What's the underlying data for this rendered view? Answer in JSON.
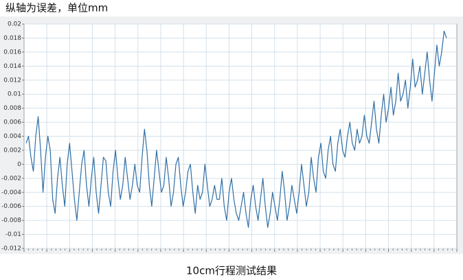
{
  "chart_data": {
    "type": "line",
    "title": "纵轴为误差，单位mm",
    "caption": "10cm行程测试结果",
    "series": [
      {
        "name": "误差",
        "color": "#2f6ea6",
        "values": [
          0.003,
          0.004,
          0.001,
          -0.001,
          0.004,
          0.0068,
          0.002,
          -0.004,
          0.001,
          0.004,
          0.002,
          -0.005,
          -0.007,
          -0.002,
          0.001,
          -0.003,
          -0.006,
          0,
          0.003,
          -0.001,
          -0.005,
          -0.008,
          -0.004,
          0,
          0.002,
          -0.003,
          -0.006,
          -0.002,
          0.001,
          -0.004,
          -0.007,
          -0.003,
          0.001,
          0.0005,
          -0.004,
          -0.006,
          -0.001,
          0.002,
          -0.002,
          -0.005,
          -0.003,
          0.001,
          -0.002,
          -0.005,
          -0.003,
          0,
          -0.003,
          -0.004,
          0.001,
          0.005,
          0.002,
          -0.003,
          -0.006,
          -0.002,
          0.002,
          -0.001,
          -0.004,
          -0.003,
          0.001,
          -0.002,
          -0.006,
          -0.004,
          0,
          0.001,
          -0.003,
          -0.006,
          -0.004,
          -0.001,
          0,
          -0.004,
          -0.007,
          -0.003,
          -0.005,
          -0.004,
          0,
          -0.003,
          -0.006,
          -0.005,
          -0.003,
          -0.005,
          -0.005,
          -0.002,
          -0.006,
          -0.008,
          -0.004,
          -0.002,
          -0.005,
          -0.007,
          -0.008,
          -0.006,
          -0.004,
          -0.007,
          -0.009,
          -0.005,
          -0.003,
          -0.006,
          -0.008,
          -0.005,
          -0.002,
          -0.006,
          -0.009,
          -0.007,
          -0.004,
          -0.006,
          -0.008,
          -0.005,
          -0.001,
          -0.004,
          -0.008,
          -0.006,
          -0.003,
          -0.005,
          -0.007,
          -0.004,
          0,
          -0.003,
          -0.006,
          -0.004,
          0.001,
          -0.002,
          -0.004,
          0.001,
          0.003,
          -0.001,
          -0.002,
          0.002,
          0.004,
          0,
          -0.001,
          0.003,
          0.005,
          0.002,
          0.001,
          0.004,
          0.006,
          0.003,
          0.002,
          0.005,
          0.003,
          0.004,
          0.007,
          0.004,
          0.003,
          0.006,
          0.009,
          0.005,
          0.003,
          0.007,
          0.01,
          0.006,
          0.008,
          0.011,
          0.007,
          0.009,
          0.013,
          0.009,
          0.01,
          0.012,
          0.008,
          0.011,
          0.015,
          0.011,
          0.012,
          0.014,
          0.01,
          0.013,
          0.016,
          0.012,
          0.009,
          0.013,
          0.017,
          0.014,
          0.016,
          0.019,
          0.018
        ]
      }
    ],
    "ylim": [
      -0.012,
      0.02
    ],
    "yticks": [
      -0.012,
      -0.01,
      -0.008,
      -0.006,
      -0.004,
      -0.002,
      0,
      0.002,
      0.004,
      0.006,
      0.008,
      0.01,
      0.012,
      0.014,
      0.016,
      0.018,
      0.02
    ],
    "grid": true
  }
}
